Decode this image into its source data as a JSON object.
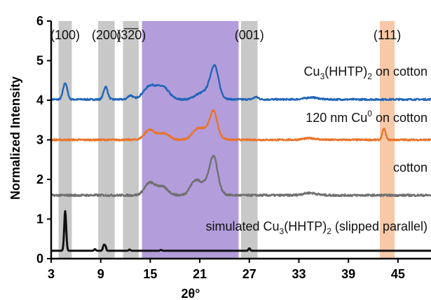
{
  "chart_data": {
    "type": "line",
    "title": "",
    "xlabel": "2θ°",
    "ylabel": "Normalized Intensity",
    "xlim": [
      3,
      49
    ],
    "ylim": [
      0,
      6
    ],
    "xticks": [
      3,
      9,
      15,
      21,
      27,
      33,
      39,
      45
    ],
    "yticks": [
      0,
      1,
      2,
      3,
      4,
      5,
      6
    ],
    "x_tick_labels": [
      "3",
      "9",
      "15",
      "21",
      "27",
      "33",
      "39",
      "45"
    ],
    "y_tick_labels": [
      "0",
      "1",
      "2",
      "3",
      "4",
      "5",
      "6"
    ],
    "grid": false,
    "shaded_regions": [
      {
        "x0": 3.9,
        "x1": 5.5,
        "color": "#c8c8c8"
      },
      {
        "x0": 8.7,
        "x1": 10.7,
        "color": "#c8c8c8"
      },
      {
        "x0": 11.7,
        "x1": 13.6,
        "color": "#c8c8c8"
      },
      {
        "x0": 14.0,
        "x1": 25.7,
        "color": "#b39ddb"
      },
      {
        "x0": 26.0,
        "x1": 28.0,
        "color": "#c8c8c8"
      },
      {
        "x0": 42.8,
        "x1": 44.6,
        "color": "#f8c9a8"
      }
    ],
    "annotations": [
      {
        "text": "(100)",
        "x": 4.7,
        "color": "#111111"
      },
      {
        "text": "(200)",
        "x": 9.7,
        "color": "#111111"
      },
      {
        "text": "(3̅2̅0)",
        "x": 12.7,
        "color": "#111111"
      },
      {
        "text": "(001)",
        "x": 27.0,
        "color": "#111111"
      },
      {
        "text": "(111)",
        "x": 43.7,
        "color": "#a01818"
      }
    ],
    "series": [
      {
        "name": "Cu3(HHTP)2 on cotton",
        "label_parts": [
          [
            "Cu",
            ""
          ],
          [
            "3",
            "sub"
          ],
          [
            "(HHTP)",
            ""
          ],
          [
            "2",
            "sub"
          ],
          [
            " on cotton",
            ""
          ]
        ],
        "color": "#2166b8",
        "baseline": 4.02,
        "noise": 0.02,
        "peaks": [
          [
            4.7,
            0.42,
            0.25
          ],
          [
            9.6,
            0.32,
            0.25
          ],
          [
            12.6,
            0.1,
            0.3
          ],
          [
            15.0,
            0.34,
            0.8
          ],
          [
            16.6,
            0.28,
            0.7
          ],
          [
            20.8,
            0.1,
            0.6
          ],
          [
            22.4,
            0.3,
            0.8
          ],
          [
            22.8,
            0.6,
            0.45
          ],
          [
            27.8,
            0.06,
            0.3
          ],
          [
            34.5,
            0.05,
            0.8
          ]
        ]
      },
      {
        "name": "120 nm Cu0 on cotton",
        "label_parts": [
          [
            "120 nm Cu",
            ""
          ],
          [
            "0",
            "sup"
          ],
          [
            " on cotton",
            ""
          ]
        ],
        "color": "#e8742a",
        "baseline": 3.0,
        "noise": 0.02,
        "peaks": [
          [
            14.9,
            0.25,
            0.6
          ],
          [
            16.6,
            0.16,
            0.7
          ],
          [
            20.6,
            0.2,
            0.6
          ],
          [
            22.1,
            0.3,
            0.9
          ],
          [
            22.7,
            0.5,
            0.4
          ],
          [
            34.3,
            0.04,
            0.8
          ],
          [
            43.3,
            0.28,
            0.2
          ]
        ]
      },
      {
        "name": "cotton",
        "label_parts": [
          [
            "cotton",
            ""
          ]
        ],
        "color": "#707070",
        "baseline": 1.6,
        "noise": 0.025,
        "peaks": [
          [
            14.9,
            0.3,
            0.6
          ],
          [
            16.4,
            0.22,
            0.7
          ],
          [
            20.4,
            0.32,
            0.6
          ],
          [
            22.1,
            0.35,
            0.9
          ],
          [
            22.7,
            0.72,
            0.45
          ],
          [
            34.3,
            0.06,
            0.8
          ]
        ]
      },
      {
        "name": "simulated Cu3(HHTP)2 (slipped parallel)",
        "label_parts": [
          [
            "simulated Cu",
            ""
          ],
          [
            "3",
            "sub"
          ],
          [
            "(HHTP)",
            ""
          ],
          [
            "2",
            "sub"
          ],
          [
            " (slipped parallel)",
            ""
          ]
        ],
        "color": "#111111",
        "baseline": 0.2,
        "noise": 0.0,
        "peaks": [
          [
            4.7,
            1.0,
            0.12
          ],
          [
            8.3,
            0.04,
            0.1
          ],
          [
            9.4,
            0.15,
            0.12
          ],
          [
            9.6,
            0.08,
            0.08
          ],
          [
            12.5,
            0.03,
            0.1
          ],
          [
            16.3,
            0.02,
            0.1
          ],
          [
            27.0,
            0.06,
            0.1
          ]
        ]
      }
    ]
  }
}
